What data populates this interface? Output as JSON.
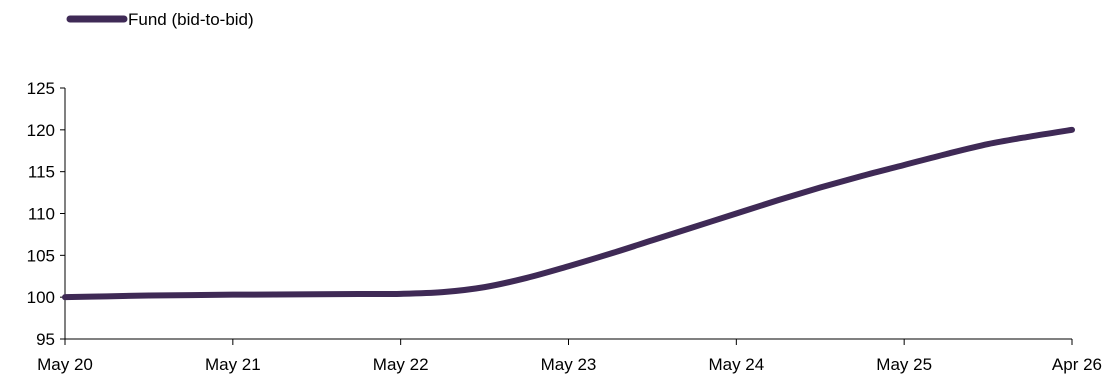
{
  "chart_data": {
    "type": "line",
    "title": "",
    "xlabel": "",
    "ylabel": "",
    "ylim": [
      95,
      125
    ],
    "yticks": [
      95,
      100,
      105,
      110,
      115,
      120,
      125
    ],
    "categories": [
      "May 20",
      "May 21",
      "May 22",
      "May 23",
      "May 24",
      "May 25",
      "Apr 26"
    ],
    "legend_position": "top-left",
    "grid": false,
    "series": [
      {
        "name": "Fund (bid-to-bid)",
        "color": "#3f2a56",
        "x": [
          0,
          0.25,
          0.5,
          0.75,
          1,
          1.25,
          1.5,
          1.75,
          2,
          2.25,
          2.5,
          2.75,
          3,
          3.25,
          3.5,
          3.75,
          4,
          4.25,
          4.5,
          4.75,
          5,
          5.25,
          5.5,
          5.75,
          6
        ],
        "values": [
          100.0,
          100.1,
          100.2,
          100.25,
          100.3,
          100.32,
          100.35,
          100.38,
          100.4,
          100.6,
          101.2,
          102.3,
          103.7,
          105.2,
          106.8,
          108.4,
          110.0,
          111.6,
          113.1,
          114.5,
          115.8,
          117.1,
          118.3,
          119.2,
          120.0
        ]
      }
    ]
  }
}
